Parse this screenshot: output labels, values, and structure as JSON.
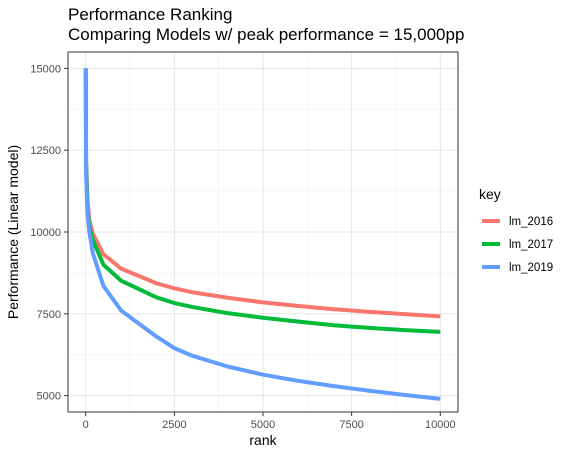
{
  "chart_data": {
    "type": "line",
    "title": "Performance Ranking",
    "subtitle": "Comparing Models w/ peak performance = 15,000pp",
    "xlabel": "rank",
    "ylabel": "Performance (Linear model)",
    "xlim": [
      -500,
      10500
    ],
    "ylim": [
      4500,
      15500
    ],
    "x_ticks": [
      0,
      2500,
      5000,
      7500,
      10000
    ],
    "x_tick_labels": [
      "0",
      "2500",
      "5000",
      "7500",
      "10000"
    ],
    "y_ticks": [
      5000,
      7500,
      10000,
      12500,
      15000
    ],
    "y_tick_labels": [
      "5000",
      "7500",
      "10000",
      "12500",
      "15000"
    ],
    "grid": true,
    "legend": {
      "title": "key",
      "position": "right"
    },
    "peak": 15000,
    "series": [
      {
        "name": "lm_2016",
        "color": "#F8766D",
        "x": [
          1,
          10,
          50,
          100,
          200,
          500,
          1000,
          2000,
          2500,
          3000,
          4000,
          5000,
          6000,
          7000,
          7500,
          8000,
          9000,
          10000
        ],
        "y": [
          15000,
          12240,
          10930,
          10370,
          9950,
          9320,
          8880,
          8430,
          8280,
          8160,
          7990,
          7850,
          7740,
          7640,
          7600,
          7560,
          7490,
          7420
        ]
      },
      {
        "name": "lm_2017",
        "color": "#00BA38",
        "x": [
          1,
          10,
          50,
          100,
          200,
          500,
          1000,
          2000,
          2500,
          3000,
          4000,
          5000,
          6000,
          7000,
          7500,
          8000,
          9000,
          10000
        ],
        "y": [
          15000,
          12100,
          10740,
          10160,
          9760,
          9000,
          8510,
          8000,
          7830,
          7710,
          7520,
          7380,
          7260,
          7150,
          7110,
          7070,
          7000,
          6950
        ]
      },
      {
        "name": "lm_2019",
        "color": "#619CFF",
        "x": [
          1,
          10,
          50,
          100,
          200,
          500,
          1000,
          2000,
          2500,
          3000,
          4000,
          5000,
          6000,
          7000,
          7500,
          8000,
          9000,
          10000
        ],
        "y": [
          15000,
          11800,
          10550,
          10020,
          9350,
          8350,
          7600,
          6800,
          6450,
          6220,
          5890,
          5640,
          5450,
          5290,
          5220,
          5150,
          5020,
          4900
        ]
      }
    ]
  }
}
